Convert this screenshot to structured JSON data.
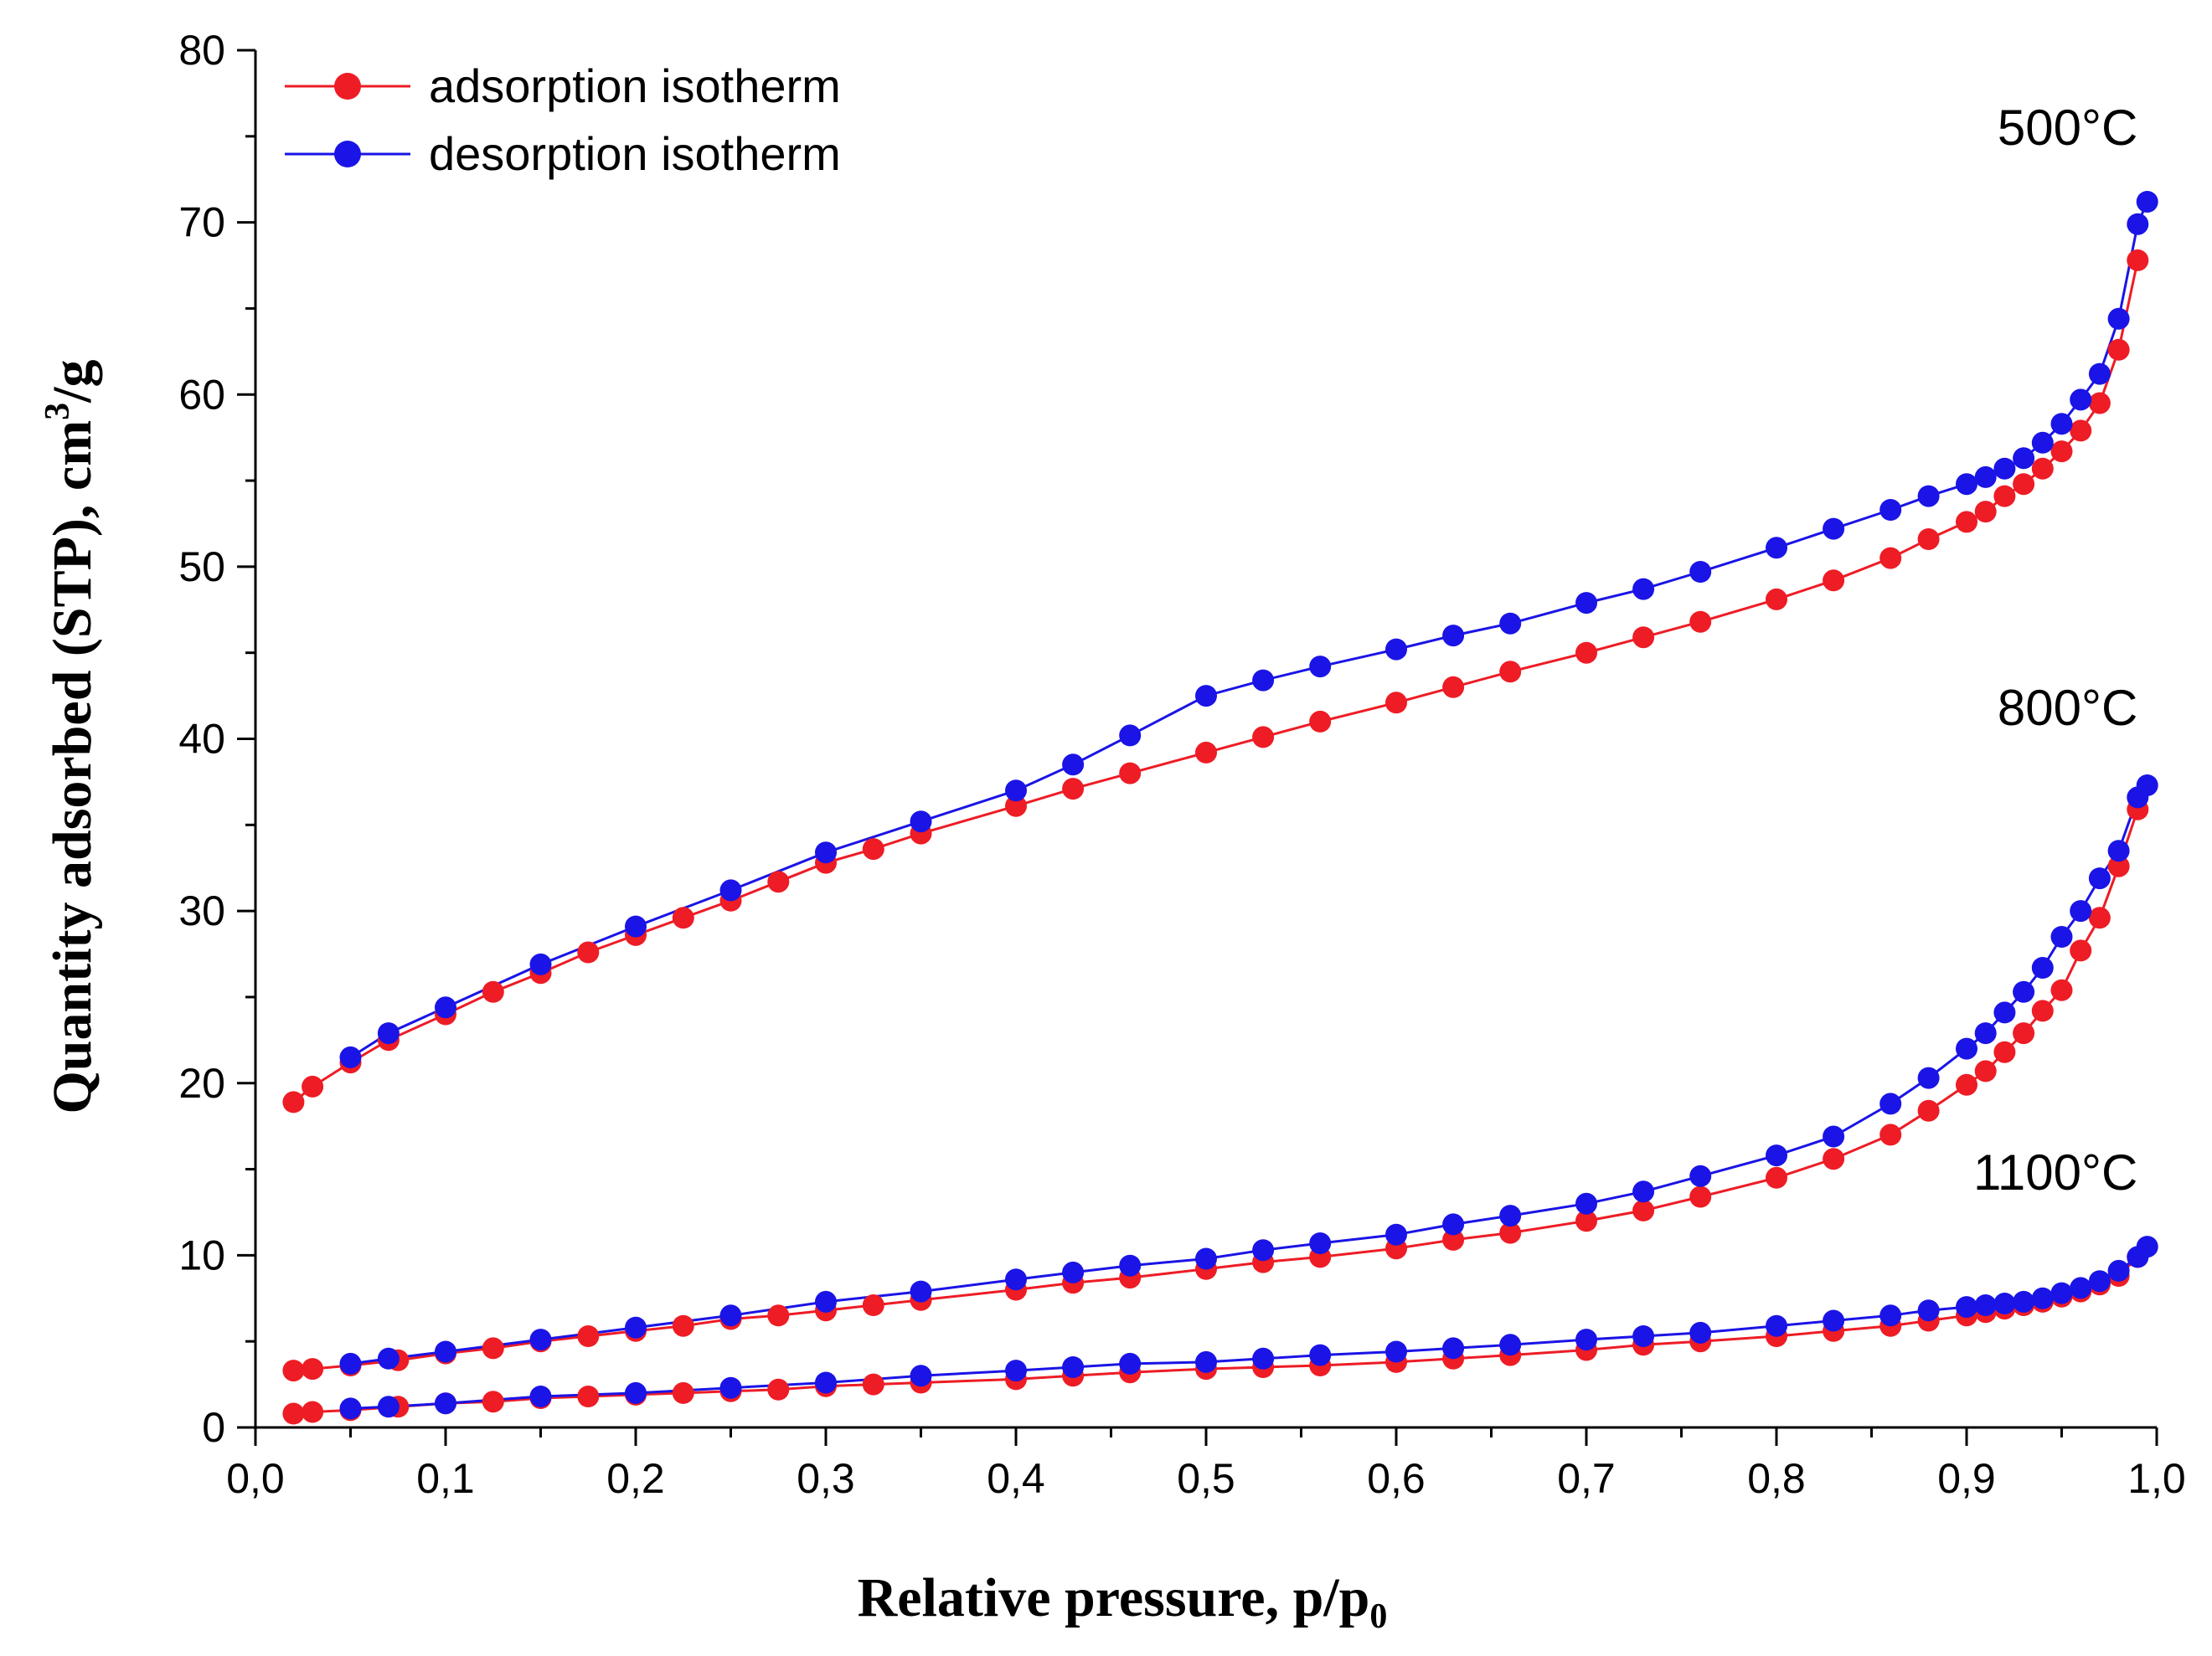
{
  "chart_data": {
    "type": "line",
    "xlabel": "Relative pressure, p/p",
    "xlabel_subscript": "0",
    "ylabel_main": "Quantity adsorbed (STP), cm",
    "ylabel_superscript": "3",
    "ylabel_tail": "/g",
    "xlim": [
      0.0,
      1.0
    ],
    "ylim": [
      0,
      80
    ],
    "x_ticks": [
      0.0,
      0.1,
      0.2,
      0.3,
      0.4,
      0.5,
      0.6,
      0.7,
      0.8,
      0.9,
      1.0
    ],
    "x_tick_labels": [
      "0,0",
      "0,1",
      "0,2",
      "0,3",
      "0,4",
      "0,5",
      "0,6",
      "0,7",
      "0,8",
      "0,9",
      "1,0"
    ],
    "y_ticks": [
      0,
      10,
      20,
      30,
      40,
      50,
      60,
      70,
      80
    ],
    "y_tick_labels": [
      "0",
      "10",
      "20",
      "30",
      "40",
      "50",
      "60",
      "70",
      "80"
    ],
    "legend": [
      {
        "label": "adsorption isotherm",
        "color": "#ee1c25"
      },
      {
        "label": "desorption isotherm",
        "color": "#1a14e6"
      }
    ],
    "legend_position": "top-left",
    "annotations": [
      {
        "text": "500°C",
        "x": 0.99,
        "y": 74.5
      },
      {
        "text": "800°C",
        "x": 0.99,
        "y": 40.8
      },
      {
        "text": "1100°C",
        "x": 0.99,
        "y": 13.8
      }
    ],
    "series": [
      {
        "name": "500°C adsorption",
        "kind": "adsorption",
        "color": "#ee1c25",
        "x": [
          0.02,
          0.03,
          0.05,
          0.07,
          0.1,
          0.125,
          0.15,
          0.175,
          0.2,
          0.225,
          0.25,
          0.275,
          0.3,
          0.325,
          0.35,
          0.4,
          0.43,
          0.46,
          0.5,
          0.53,
          0.56,
          0.6,
          0.63,
          0.66,
          0.7,
          0.73,
          0.76,
          0.8,
          0.83,
          0.86,
          0.88,
          0.9,
          0.91,
          0.92,
          0.93,
          0.94,
          0.95,
          0.96,
          0.97,
          0.98,
          0.99
        ],
        "y": [
          18.9,
          19.8,
          21.2,
          22.5,
          24.0,
          25.3,
          26.4,
          27.6,
          28.6,
          29.6,
          30.6,
          31.7,
          32.8,
          33.6,
          34.5,
          36.1,
          37.1,
          38.0,
          39.2,
          40.1,
          41.0,
          42.1,
          43.0,
          43.9,
          45.0,
          45.9,
          46.8,
          48.1,
          49.2,
          50.5,
          51.6,
          52.6,
          53.2,
          54.1,
          54.8,
          55.7,
          56.7,
          57.9,
          59.5,
          62.6,
          67.8
        ]
      },
      {
        "name": "500°C desorption",
        "kind": "desorption",
        "color": "#1a14e6",
        "x": [
          0.05,
          0.07,
          0.1,
          0.15,
          0.2,
          0.25,
          0.3,
          0.35,
          0.4,
          0.43,
          0.46,
          0.5,
          0.53,
          0.56,
          0.6,
          0.63,
          0.66,
          0.7,
          0.73,
          0.76,
          0.8,
          0.83,
          0.86,
          0.88,
          0.9,
          0.91,
          0.92,
          0.93,
          0.94,
          0.95,
          0.96,
          0.97,
          0.98,
          0.99,
          0.995
        ],
        "y": [
          21.5,
          22.9,
          24.4,
          26.9,
          29.1,
          31.2,
          33.4,
          35.2,
          37.0,
          38.5,
          40.2,
          42.5,
          43.4,
          44.2,
          45.2,
          46.0,
          46.7,
          47.9,
          48.7,
          49.7,
          51.1,
          52.2,
          53.3,
          54.1,
          54.8,
          55.2,
          55.7,
          56.3,
          57.2,
          58.3,
          59.7,
          61.2,
          64.4,
          69.9,
          71.2
        ]
      },
      {
        "name": "800°C adsorption",
        "kind": "adsorption",
        "color": "#ee1c25",
        "x": [
          0.02,
          0.03,
          0.05,
          0.075,
          0.1,
          0.125,
          0.15,
          0.175,
          0.2,
          0.225,
          0.25,
          0.275,
          0.3,
          0.325,
          0.35,
          0.4,
          0.43,
          0.46,
          0.5,
          0.53,
          0.56,
          0.6,
          0.63,
          0.66,
          0.7,
          0.73,
          0.76,
          0.8,
          0.83,
          0.86,
          0.88,
          0.9,
          0.91,
          0.92,
          0.93,
          0.94,
          0.95,
          0.96,
          0.97,
          0.98,
          0.99
        ],
        "y": [
          3.3,
          3.4,
          3.6,
          3.9,
          4.3,
          4.6,
          5.0,
          5.3,
          5.6,
          5.9,
          6.3,
          6.5,
          6.8,
          7.1,
          7.4,
          8.0,
          8.4,
          8.7,
          9.2,
          9.6,
          9.9,
          10.4,
          10.9,
          11.3,
          12.0,
          12.6,
          13.4,
          14.5,
          15.6,
          17.0,
          18.4,
          19.9,
          20.7,
          21.8,
          22.9,
          24.2,
          25.4,
          27.7,
          29.6,
          32.6,
          35.9
        ]
      },
      {
        "name": "800°C desorption",
        "kind": "desorption",
        "color": "#1a14e6",
        "x": [
          0.05,
          0.07,
          0.1,
          0.15,
          0.2,
          0.25,
          0.3,
          0.35,
          0.4,
          0.43,
          0.46,
          0.5,
          0.53,
          0.56,
          0.6,
          0.63,
          0.66,
          0.7,
          0.73,
          0.76,
          0.8,
          0.83,
          0.86,
          0.88,
          0.9,
          0.91,
          0.92,
          0.93,
          0.94,
          0.95,
          0.96,
          0.97,
          0.98,
          0.99,
          0.995
        ],
        "y": [
          3.7,
          4.0,
          4.4,
          5.1,
          5.8,
          6.5,
          7.3,
          7.9,
          8.6,
          9.0,
          9.4,
          9.8,
          10.3,
          10.7,
          11.2,
          11.8,
          12.3,
          13.0,
          13.7,
          14.6,
          15.8,
          16.9,
          18.8,
          20.3,
          22.0,
          22.9,
          24.1,
          25.3,
          26.7,
          28.5,
          30.0,
          31.9,
          33.5,
          36.6,
          37.3
        ]
      },
      {
        "name": "1100°C adsorption",
        "kind": "adsorption",
        "color": "#ee1c25",
        "x": [
          0.02,
          0.03,
          0.05,
          0.075,
          0.1,
          0.125,
          0.15,
          0.175,
          0.2,
          0.225,
          0.25,
          0.275,
          0.3,
          0.325,
          0.35,
          0.4,
          0.43,
          0.46,
          0.5,
          0.53,
          0.56,
          0.6,
          0.63,
          0.66,
          0.7,
          0.73,
          0.76,
          0.8,
          0.83,
          0.86,
          0.88,
          0.9,
          0.91,
          0.92,
          0.93,
          0.94,
          0.95,
          0.96,
          0.97,
          0.98,
          0.99
        ],
        "y": [
          0.8,
          0.9,
          1.0,
          1.2,
          1.4,
          1.5,
          1.7,
          1.8,
          1.9,
          2.0,
          2.1,
          2.2,
          2.4,
          2.5,
          2.6,
          2.8,
          3.0,
          3.2,
          3.4,
          3.5,
          3.6,
          3.8,
          4.0,
          4.2,
          4.5,
          4.8,
          5.0,
          5.3,
          5.6,
          5.9,
          6.2,
          6.5,
          6.7,
          6.9,
          7.1,
          7.3,
          7.6,
          7.9,
          8.3,
          8.8,
          9.9
        ]
      },
      {
        "name": "1100°C desorption",
        "kind": "desorption",
        "color": "#1a14e6",
        "x": [
          0.05,
          0.07,
          0.1,
          0.15,
          0.2,
          0.25,
          0.3,
          0.35,
          0.4,
          0.43,
          0.46,
          0.5,
          0.53,
          0.56,
          0.6,
          0.63,
          0.66,
          0.7,
          0.73,
          0.76,
          0.8,
          0.83,
          0.86,
          0.88,
          0.9,
          0.91,
          0.92,
          0.93,
          0.94,
          0.95,
          0.96,
          0.97,
          0.98,
          0.99,
          0.995
        ],
        "y": [
          1.1,
          1.2,
          1.4,
          1.8,
          2.0,
          2.3,
          2.6,
          3.0,
          3.3,
          3.5,
          3.7,
          3.8,
          4.0,
          4.2,
          4.4,
          4.6,
          4.8,
          5.1,
          5.3,
          5.5,
          5.9,
          6.2,
          6.5,
          6.8,
          7.0,
          7.1,
          7.2,
          7.3,
          7.5,
          7.8,
          8.1,
          8.5,
          9.1,
          9.9,
          10.5
        ]
      }
    ]
  }
}
